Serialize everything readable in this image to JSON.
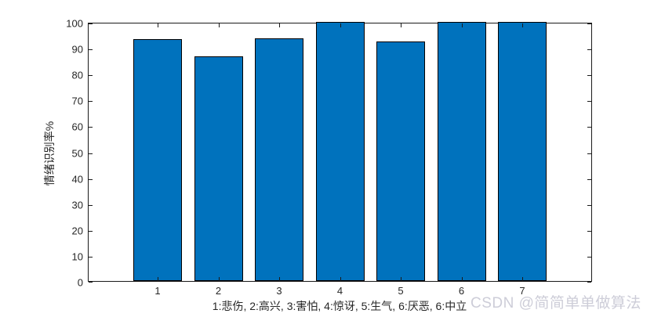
{
  "chart_data": {
    "type": "bar",
    "categories": [
      "1",
      "2",
      "3",
      "4",
      "5",
      "6",
      "7"
    ],
    "values": [
      93.3,
      86.7,
      93.6,
      100,
      92.5,
      100,
      100
    ],
    "title": "",
    "xlabel": "1:悲伤, 2:高兴, 3:害怕, 4:惊讶, 5:生气, 6:厌恶, 6:中立",
    "ylabel": "情绪识别率%",
    "ylim": [
      0,
      100
    ],
    "yticks": [
      0,
      10,
      20,
      30,
      40,
      50,
      60,
      70,
      80,
      90,
      100
    ],
    "grid": false,
    "legend": null,
    "bar_color": "#0072BD",
    "bar_edge_color": "#000000",
    "axis_color": "#262626"
  },
  "watermark": {
    "text": "CSDN @简简单单做算法",
    "color": "#cdcdd8"
  }
}
